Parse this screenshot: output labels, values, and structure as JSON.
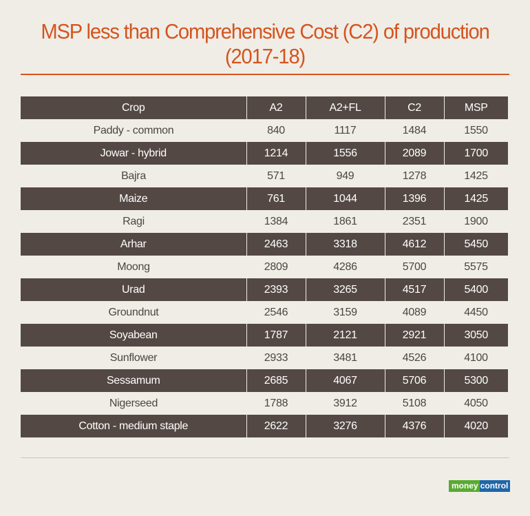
{
  "title": "MSP less than Comprehensive Cost (C2) of production (2017-18)",
  "logo": {
    "part1": "money",
    "part2": "control",
    "colors": {
      "money": "#5aaa32",
      "control": "#1f66a8"
    }
  },
  "colors": {
    "title": "#d4541e",
    "dark_row": "#534844",
    "background": "#f0ede7"
  },
  "chart_data": {
    "type": "table",
    "title": "MSP less than Comprehensive Cost (C2) of production (2017-18)",
    "columns": [
      "Crop",
      "A2",
      "A2+FL",
      "C2",
      "MSP"
    ],
    "rows": [
      [
        "Paddy - common",
        "840",
        "1117",
        "1484",
        "1550"
      ],
      [
        "Jowar - hybrid",
        "1214",
        "1556",
        "2089",
        "1700"
      ],
      [
        "Bajra",
        "571",
        "949",
        "1278",
        "1425"
      ],
      [
        "Maize",
        "761",
        "1044",
        "1396",
        "1425"
      ],
      [
        "Ragi",
        "1384",
        "1861",
        "2351",
        "1900"
      ],
      [
        "Arhar",
        "2463",
        "3318",
        "4612",
        "5450"
      ],
      [
        "Moong",
        "2809",
        "4286",
        "5700",
        "5575"
      ],
      [
        "Urad",
        "2393",
        "3265",
        "4517",
        "5400"
      ],
      [
        "Groundnut",
        "2546",
        "3159",
        "4089",
        "4450"
      ],
      [
        "Soyabean",
        "1787",
        "2121",
        "2921",
        "3050"
      ],
      [
        "Sunflower",
        "2933",
        "3481",
        "4526",
        "4100"
      ],
      [
        "Sessamum",
        "2685",
        "4067",
        "5706",
        "5300"
      ],
      [
        "Nigerseed",
        "1788",
        "3912",
        "5108",
        "4050"
      ],
      [
        "Cotton - medium staple",
        "2622",
        "3276",
        "4376",
        "4020"
      ]
    ]
  }
}
